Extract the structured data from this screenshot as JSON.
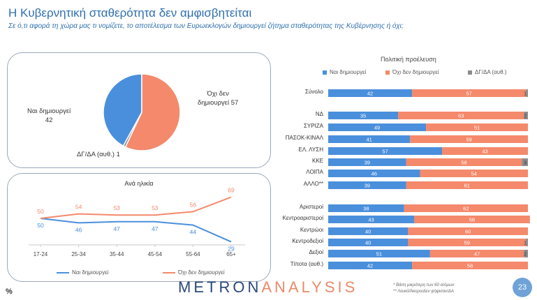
{
  "header": {
    "title": "Η Κυβερνητική σταθερότητα δεν αμφισβητείται",
    "subtitle": "Σε ό,τι αφορά τη χώρα μας τι νομίζετε, το αποτέλεσμα των Ευρωεκλογών δημιουργεί ζήτημα σταθερότητας της Κυβέρνησης ή όχι;"
  },
  "colors": {
    "blue": "#4a8fdc",
    "orange": "#f4896b",
    "gray": "#8c8c8c"
  },
  "pie": {
    "label_yes_line1": "Ναι δημιουργεί",
    "label_yes_line2": "42",
    "label_no_line1": "Όχι δεν",
    "label_no_line2": "δημιουργεί 57",
    "label_dk": "ΔΓ/ΔΑ (αυθ.) 1"
  },
  "chart_data": [
    {
      "type": "pie",
      "title": "",
      "slices": [
        {
          "name": "Ναι δημιουργεί",
          "value": 42
        },
        {
          "name": "Όχι δεν δημιουργεί",
          "value": 57
        },
        {
          "name": "ΔΓ/ΔΑ (αυθ.)",
          "value": 1
        }
      ]
    },
    {
      "type": "line",
      "title": "Ανά ηλικία",
      "categories": [
        "17-24",
        "25-34",
        "35-44",
        "45-54",
        "55-64",
        "65+"
      ],
      "series": [
        {
          "name": "Ναι δημιουργεί",
          "values": [
            50,
            46,
            47,
            47,
            44,
            29
          ]
        },
        {
          "name": "Όχι δεν δημιουργεί",
          "values": [
            50,
            54,
            53,
            53,
            56,
            69
          ]
        }
      ],
      "ylim": [
        20,
        75
      ]
    },
    {
      "type": "bar",
      "title": "Πολιτική προέλευση",
      "stacked": true,
      "legend": [
        "Ναι δημιουργεί",
        "Όχι δεν δημιουργεί",
        "ΔΓ/ΔΑ (αυθ.)"
      ],
      "categories": [
        "Σύνολο",
        "ΝΔ",
        "ΣΥΡΙΖΑ",
        "ΠΑΣΟΚ-ΚΙΝΑΛ",
        "ΕΛ. ΛΥΣΗ",
        "ΚΚΕ",
        "ΛΟΙΠΑ",
        "ΑΛΛΟ**",
        "Αριστεροί",
        "Κεντροαριστεροί",
        "Κεντρώοι",
        "Κεντροδεξιοί",
        "Δεξιοί",
        "Τίποτα (αυθ.)"
      ],
      "series": [
        {
          "name": "Ναι δημιουργεί",
          "values": [
            42,
            35,
            49,
            41,
            57,
            39,
            46,
            39,
            38,
            43,
            40,
            40,
            51,
            42
          ]
        },
        {
          "name": "Όχι δεν δημιουργεί",
          "values": [
            57,
            63,
            51,
            59,
            43,
            58,
            54,
            61,
            62,
            58,
            60,
            59,
            47,
            58
          ]
        },
        {
          "name": "ΔΓ/ΔΑ (αυθ.)",
          "values": [
            1,
            2,
            0,
            0,
            0,
            3,
            0,
            0,
            0,
            0,
            0,
            1,
            2,
            0
          ]
        }
      ],
      "xlim": [
        0,
        100
      ]
    }
  ],
  "footer": {
    "logo_a": "METRON",
    "logo_b": "ANALYSIS",
    "note1": "*  Βάση μικρότερη των 60 ατόμων",
    "note2": "** Λευκό/Άκυρο/Δεν ψήφισαν/ΔΑ",
    "page": "23",
    "percent": "%"
  }
}
